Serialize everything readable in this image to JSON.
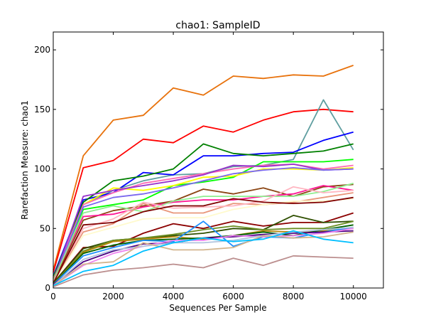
{
  "chart_data": {
    "type": "line",
    "title": "chao1: SampleID",
    "xlabel": "Sequences Per Sample",
    "ylabel": "Rarefaction Measure: chao1",
    "xlim": [
      0,
      11000
    ],
    "ylim": [
      0,
      215
    ],
    "xticks": [
      0,
      2000,
      4000,
      6000,
      8000,
      10000
    ],
    "yticks": [
      0,
      50,
      100,
      150,
      200
    ],
    "grid": false,
    "x": [
      0,
      1000,
      2000,
      3000,
      4000,
      5000,
      6000,
      7000,
      8000,
      9000,
      10000
    ],
    "series": [
      {
        "color": "#e8720c",
        "values": [
          15,
          111,
          141,
          145,
          168,
          162,
          178,
          176,
          179,
          178,
          187
        ]
      },
      {
        "color": "#ff0000",
        "values": [
          13,
          101,
          107,
          125,
          122,
          136,
          131,
          141,
          148,
          150,
          148
        ]
      },
      {
        "color": "#5f9ea0",
        "values": [
          8,
          70,
          82,
          90,
          95,
          96,
          102,
          103,
          108,
          158,
          116
        ]
      },
      {
        "color": "#0000ff",
        "values": [
          10,
          74,
          80,
          97,
          95,
          111,
          111,
          113,
          114,
          124,
          131
        ]
      },
      {
        "color": "#008000",
        "values": [
          9,
          72,
          90,
          94,
          100,
          121,
          113,
          111,
          113,
          115,
          121
        ]
      },
      {
        "color": "#00ff00",
        "values": [
          8,
          66,
          70,
          74,
          86,
          89,
          93,
          106,
          106,
          106,
          108
        ]
      },
      {
        "color": "#ffff00",
        "values": [
          7,
          70,
          84,
          82,
          86,
          93,
          94,
          100,
          100,
          99,
          101
        ]
      },
      {
        "color": "#ff69b4",
        "values": [
          7,
          70,
          80,
          88,
          92,
          96,
          100,
          103,
          104,
          100,
          103
        ]
      },
      {
        "color": "#9932cc",
        "values": [
          6,
          77,
          82,
          86,
          90,
          95,
          103,
          102,
          104,
          99,
          100
        ]
      },
      {
        "color": "#7b68ee",
        "values": [
          6,
          68,
          76,
          79,
          84,
          90,
          96,
          99,
          101,
          99,
          100
        ]
      },
      {
        "color": "#8b4513",
        "values": [
          5,
          57,
          65,
          69,
          73,
          83,
          79,
          84,
          77,
          85,
          87
        ]
      },
      {
        "color": "#ff1493",
        "values": [
          7,
          60,
          62,
          68,
          72,
          74,
          74,
          77,
          79,
          86,
          82
        ]
      },
      {
        "color": "#90ee90",
        "values": [
          6,
          63,
          69,
          64,
          73,
          77,
          77,
          77,
          77,
          81,
          88
        ]
      },
      {
        "color": "#e9967a",
        "values": [
          5,
          47,
          54,
          71,
          63,
          63,
          71,
          70,
          72,
          76,
          80
        ]
      },
      {
        "color": "#ffb6c1",
        "values": [
          5,
          50,
          58,
          72,
          67,
          68,
          69,
          73,
          85,
          80,
          82
        ]
      },
      {
        "color": "#fffacd",
        "values": [
          4,
          44,
          51,
          58,
          59,
          59,
          66,
          70,
          73,
          73,
          75
        ]
      },
      {
        "color": "#800000",
        "values": [
          4,
          53,
          55,
          64,
          69,
          69,
          75,
          72,
          71,
          72,
          76
        ]
      },
      {
        "color": "#8b0000",
        "values": [
          4,
          34,
          35,
          46,
          54,
          50,
          56,
          52,
          55,
          55,
          63
        ]
      },
      {
        "color": "#2f4f00",
        "values": [
          4,
          33,
          40,
          42,
          44,
          46,
          50,
          49,
          61,
          55,
          56
        ]
      },
      {
        "color": "#6b8e23",
        "values": [
          3,
          31,
          40,
          42,
          45,
          49,
          52,
          49,
          50,
          50,
          56
        ]
      },
      {
        "color": "#b8860b",
        "values": [
          3,
          30,
          39,
          41,
          43,
          41,
          44,
          48,
          47,
          48,
          50
        ]
      },
      {
        "color": "#006400",
        "values": [
          3,
          29,
          36,
          40,
          41,
          42,
          44,
          47,
          44,
          49,
          53
        ]
      },
      {
        "color": "#1e90ff",
        "values": [
          3,
          27,
          34,
          40,
          39,
          56,
          35,
          43,
          42,
          47,
          51
        ]
      },
      {
        "color": "#4b0082",
        "values": [
          3,
          22,
          31,
          37,
          38,
          42,
          43,
          45,
          46,
          47,
          48
        ]
      },
      {
        "color": "#ee82ee",
        "values": [
          2,
          19,
          29,
          35,
          40,
          40,
          44,
          43,
          44,
          46,
          50
        ]
      },
      {
        "color": "#b0c4de",
        "values": [
          2,
          24,
          32,
          35,
          38,
          38,
          40,
          44,
          47,
          49,
          51
        ]
      },
      {
        "color": "#d2b48c",
        "values": [
          2,
          20,
          22,
          38,
          32,
          32,
          34,
          44,
          42,
          43,
          47
        ]
      },
      {
        "color": "#00bfff",
        "values": [
          2,
          14,
          19,
          31,
          38,
          42,
          39,
          41,
          48,
          41,
          38
        ]
      },
      {
        "color": "#bc8f8f",
        "values": [
          1,
          11,
          15,
          17,
          20,
          17,
          25,
          19,
          27,
          26,
          25
        ]
      }
    ]
  }
}
